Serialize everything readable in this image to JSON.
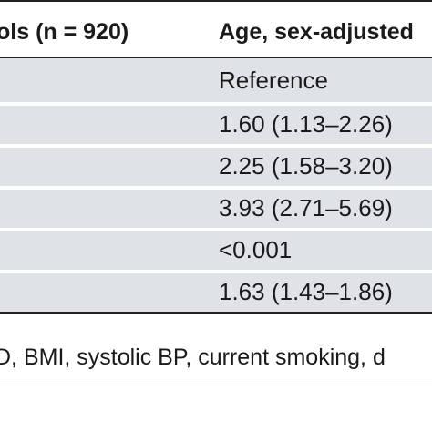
{
  "table": {
    "header": {
      "col1": "ols (n = 920)",
      "col2": "Age, sex-adjusted"
    },
    "rows": [
      {
        "value": "Reference"
      },
      {
        "value": "1.60 (1.13–2.26)"
      },
      {
        "value": "2.25 (1.58–3.20)"
      },
      {
        "value": "3.93 (2.71–5.69)"
      },
      {
        "value": "<0.001"
      },
      {
        "value": "1.63 (1.43–1.86)"
      }
    ],
    "footnote": "D, BMI, systolic BP, current smoking, d"
  },
  "colors": {
    "row_shade": "#dfe3e8",
    "rule": "#222222",
    "text": "#1a1a1a"
  }
}
